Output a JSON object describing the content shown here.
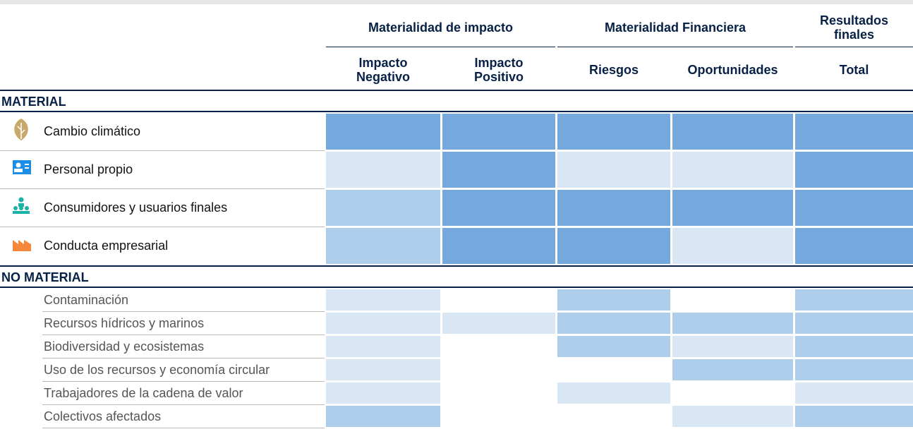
{
  "header": {
    "groups": [
      "Materialidad de impacto",
      "Materialidad Financiera",
      "Resultados finales"
    ],
    "columns": [
      "Impacto Negativo",
      "Impacto Positivo",
      "Riesgos",
      "Oportunidades",
      "Total"
    ]
  },
  "sections": [
    {
      "title": "MATERIAL",
      "rows": [
        {
          "label": "Cambio climático",
          "colors": [
            "#75a8dc",
            "#75a8dc",
            "#75a8dc",
            "#75a8dc",
            "#75a8dc"
          ]
        },
        {
          "label": "Personal propio",
          "colors": [
            "#d9e7f5",
            "#75a8dc",
            "#d9e7f5",
            "#d9e7f5",
            "#75a8dc"
          ]
        },
        {
          "label": "Consumidores y usuarios finales",
          "colors": [
            "#aecdeb",
            "#75a8dc",
            "#75a8dc",
            "#75a8dc",
            "#75a8dc"
          ]
        },
        {
          "label": "Conducta empresarial",
          "colors": [
            "#aecdeb",
            "#75a8dc",
            "#75a8dc",
            "#d9e7f5",
            "#75a8dc"
          ]
        }
      ]
    },
    {
      "title": "NO MATERIAL",
      "rows": [
        {
          "label": "Contaminación",
          "colors": [
            "#d9e7f5",
            "#ffffff",
            "#aecdeb",
            "#ffffff",
            "#aecdeb"
          ]
        },
        {
          "label": "Recursos hídricos y marinos",
          "colors": [
            "#d9e7f5",
            "#d9e7f5",
            "#aecdeb",
            "#aecdeb",
            "#aecdeb"
          ]
        },
        {
          "label": "Biodiversidad y ecosistemas",
          "colors": [
            "#d9e7f5",
            "#ffffff",
            "#aecdeb",
            "#d9e7f5",
            "#aecdeb"
          ]
        },
        {
          "label": "Uso de los recursos y economía circular",
          "colors": [
            "#d9e7f5",
            "#ffffff",
            "#ffffff",
            "#aecdeb",
            "#aecdeb"
          ]
        },
        {
          "label": "Trabajadores de la cadena de valor",
          "colors": [
            "#d9e7f5",
            "#ffffff",
            "#d9e7f5",
            "#ffffff",
            "#d9e7f5"
          ]
        },
        {
          "label": "Colectivos afectados",
          "colors": [
            "#aecdeb",
            "#ffffff",
            "#ffffff",
            "#d9e7f5",
            "#aecdeb"
          ]
        }
      ]
    }
  ]
}
